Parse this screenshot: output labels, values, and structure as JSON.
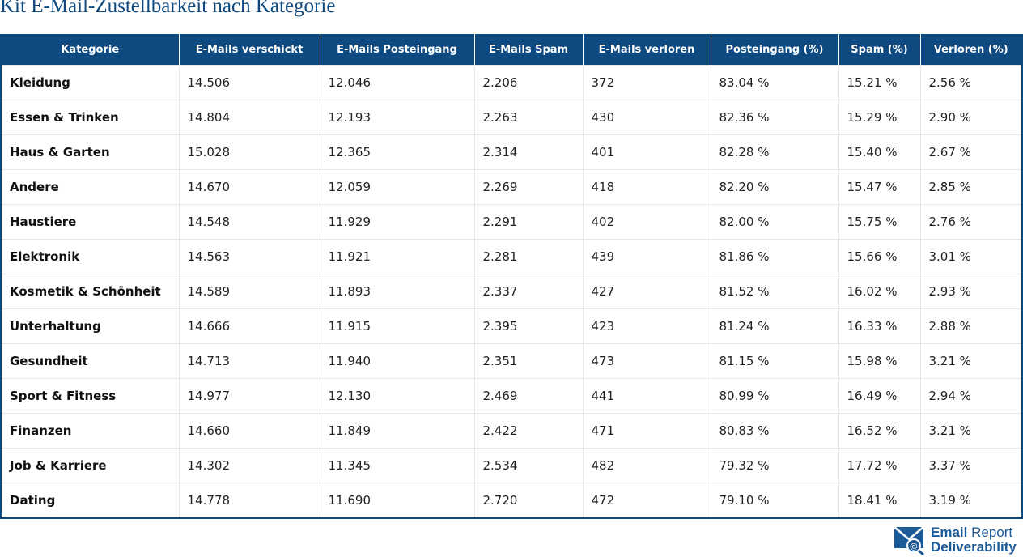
{
  "title": "Kit E-Mail-Zustellbarkeit nach Kategorie",
  "table": {
    "headers": [
      "Kategorie",
      "E-Mails verschickt",
      "E-Mails Posteingang",
      "E-Mails Spam",
      "E-Mails verloren",
      "Posteingang (%)",
      "Spam (%)",
      "Verloren (%)"
    ],
    "rows": [
      [
        "Kleidung",
        "14.506",
        "12.046",
        "2.206",
        "372",
        "83.04 %",
        "15.21 %",
        "2.56 %"
      ],
      [
        "Essen & Trinken",
        "14.804",
        "12.193",
        "2.263",
        "430",
        "82.36 %",
        "15.29 %",
        "2.90 %"
      ],
      [
        "Haus & Garten",
        "15.028",
        "12.365",
        "2.314",
        "401",
        "82.28 %",
        "15.40 %",
        "2.67 %"
      ],
      [
        "Andere",
        "14.670",
        "12.059",
        "2.269",
        "418",
        "82.20 %",
        "15.47 %",
        "2.85 %"
      ],
      [
        "Haustiere",
        "14.548",
        "11.929",
        "2.291",
        "402",
        "82.00 %",
        "15.75 %",
        "2.76 %"
      ],
      [
        "Elektronik",
        "14.563",
        "11.921",
        "2.281",
        "439",
        "81.86 %",
        "15.66 %",
        "3.01 %"
      ],
      [
        "Kosmetik & Schönheit",
        "14.589",
        "11.893",
        "2.337",
        "427",
        "81.52 %",
        "16.02 %",
        "2.93 %"
      ],
      [
        "Unterhaltung",
        "14.666",
        "11.915",
        "2.395",
        "423",
        "81.24 %",
        "16.33 %",
        "2.88 %"
      ],
      [
        "Gesundheit",
        "14.713",
        "11.940",
        "2.351",
        "473",
        "81.15 %",
        "15.98 %",
        "3.21 %"
      ],
      [
        "Sport & Fitness",
        "14.977",
        "12.130",
        "2.469",
        "441",
        "80.99 %",
        "16.49 %",
        "2.94 %"
      ],
      [
        "Finanzen",
        "14.660",
        "11.849",
        "2.422",
        "471",
        "80.83 %",
        "16.52 %",
        "3.21 %"
      ],
      [
        "Job & Karriere",
        "14.302",
        "11.345",
        "2.534",
        "482",
        "79.32 %",
        "17.72 %",
        "3.37 %"
      ],
      [
        "Dating",
        "14.778",
        "11.690",
        "2.720",
        "472",
        "79.10 %",
        "18.41 %",
        "3.19 %"
      ]
    ]
  },
  "logo": {
    "line1_bold": "Email",
    "line1_rest": "Report",
    "line2": "Deliverability"
  },
  "colors": {
    "header": "#0e4a80",
    "brand": "#1b5a96"
  }
}
